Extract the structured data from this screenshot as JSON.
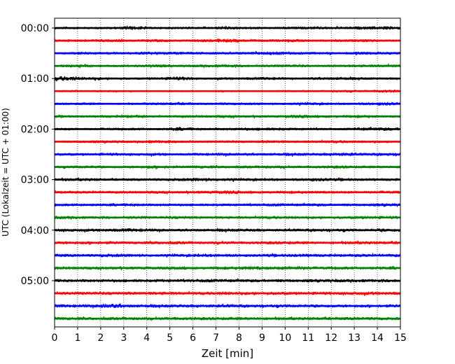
{
  "chart_data": {
    "type": "line",
    "subtype": "helicorder",
    "xlabel": "Zeit  [min]",
    "ylabel": "UTC (Lokalzeit = UTC + 01:00)",
    "xlim": [
      0,
      15
    ],
    "x_ticks": [
      0,
      1,
      2,
      3,
      4,
      5,
      6,
      7,
      8,
      9,
      10,
      11,
      12,
      13,
      14,
      15
    ],
    "x_tick_labels": [
      "0",
      "1",
      "2",
      "3",
      "4",
      "5",
      "6",
      "7",
      "8",
      "9",
      "10",
      "11",
      "12",
      "13",
      "14",
      "15"
    ],
    "y_tick_labels": [
      "00:00",
      "01:00",
      "02:00",
      "03:00",
      "04:00",
      "05:00"
    ],
    "y_tick_rows": [
      0,
      4,
      8,
      12,
      16,
      20
    ],
    "trace_minutes": 15,
    "trace_count": 24,
    "trace_colors": [
      "#000000",
      "#ff0000",
      "#0000ff",
      "#008000"
    ],
    "vertical_grid": "dotted",
    "grid_x": true,
    "series": [
      {
        "start": "00:00",
        "values": [
          0.5,
          0.4,
          0.4,
          0.8,
          0.4,
          0.5,
          0.4,
          0.6,
          0.5,
          0.4,
          0.5,
          0.6,
          0.5,
          0.6,
          0.7,
          0.4
        ]
      },
      {
        "start": "00:15",
        "values": [
          0.5,
          0.5,
          0.6,
          0.4,
          0.6,
          0.4,
          0.6,
          0.8,
          0.5,
          0.5,
          0.6,
          0.4,
          0.5,
          0.6,
          0.4,
          0.4
        ]
      },
      {
        "start": "00:30",
        "values": [
          0.4,
          0.6,
          0.4,
          0.5,
          0.6,
          0.6,
          0.5,
          0.5,
          0.5,
          0.7,
          0.5,
          0.5,
          0.4,
          0.6,
          0.5,
          0.5
        ]
      },
      {
        "start": "00:45",
        "values": [
          0.5,
          0.6,
          0.4,
          0.5,
          0.6,
          0.4,
          0.5,
          0.6,
          0.5,
          0.5,
          0.6,
          0.4,
          0.5,
          0.5,
          0.6,
          0.5
        ]
      },
      {
        "start": "01:00",
        "values": [
          1.0,
          0.7,
          0.5,
          0.4,
          0.5,
          0.8,
          0.4,
          0.5,
          0.5,
          0.6,
          0.4,
          0.5,
          0.6,
          0.5,
          0.4,
          0.5
        ]
      },
      {
        "start": "01:15",
        "values": [
          0.4,
          0.3,
          0.4,
          0.3,
          0.3,
          0.4,
          0.3,
          0.4,
          0.3,
          0.3,
          0.4,
          0.3,
          0.5,
          0.4,
          0.6,
          0.3
        ]
      },
      {
        "start": "01:30",
        "values": [
          0.4,
          0.5,
          0.4,
          0.4,
          0.5,
          0.6,
          0.4,
          0.5,
          0.5,
          0.4,
          0.5,
          0.5,
          0.4,
          0.5,
          0.7,
          0.5
        ]
      },
      {
        "start": "01:45",
        "values": [
          0.5,
          0.4,
          0.5,
          0.6,
          0.4,
          0.5,
          0.5,
          0.6,
          0.5,
          0.4,
          0.7,
          0.5,
          0.5,
          0.6,
          0.4,
          0.5
        ]
      },
      {
        "start": "02:00",
        "values": [
          0.5,
          0.4,
          0.5,
          0.5,
          0.4,
          0.7,
          0.5,
          0.5,
          0.6,
          0.6,
          0.5,
          0.5,
          0.4,
          0.6,
          0.7,
          0.5
        ]
      },
      {
        "start": "02:15",
        "values": [
          0.4,
          0.5,
          0.5,
          0.4,
          0.6,
          0.5,
          0.4,
          0.5,
          0.4,
          0.6,
          0.4,
          0.5,
          0.6,
          0.5,
          0.4,
          0.5
        ]
      },
      {
        "start": "02:30",
        "values": [
          0.5,
          0.5,
          0.6,
          0.5,
          0.6,
          0.4,
          0.5,
          0.6,
          0.5,
          0.5,
          0.6,
          0.5,
          0.7,
          0.5,
          0.6,
          0.6
        ]
      },
      {
        "start": "02:45",
        "values": [
          0.5,
          0.6,
          0.5,
          0.5,
          0.7,
          0.5,
          0.6,
          0.5,
          0.5,
          0.6,
          0.5,
          0.5,
          0.6,
          0.5,
          0.5,
          0.6
        ]
      },
      {
        "start": "03:00",
        "values": [
          0.6,
          0.6,
          0.5,
          0.5,
          0.5,
          0.6,
          0.7,
          0.6,
          0.5,
          0.5,
          0.5,
          0.7,
          0.6,
          0.5,
          0.5,
          0.6
        ]
      },
      {
        "start": "03:15",
        "values": [
          0.5,
          0.5,
          0.5,
          0.5,
          0.6,
          0.5,
          0.5,
          0.8,
          0.5,
          0.5,
          0.6,
          0.5,
          0.5,
          0.5,
          0.6,
          0.5
        ]
      },
      {
        "start": "03:30",
        "values": [
          0.5,
          0.5,
          0.5,
          0.6,
          0.5,
          0.5,
          0.5,
          0.5,
          0.5,
          0.6,
          0.5,
          0.6,
          0.5,
          0.5,
          0.6,
          0.5
        ]
      },
      {
        "start": "03:45",
        "values": [
          0.6,
          0.5,
          0.5,
          0.6,
          0.5,
          0.6,
          0.5,
          0.5,
          0.5,
          0.6,
          0.6,
          0.5,
          0.5,
          0.6,
          0.6,
          0.5
        ]
      },
      {
        "start": "04:00",
        "values": [
          0.6,
          0.6,
          0.6,
          0.7,
          0.6,
          0.5,
          0.5,
          0.6,
          0.6,
          0.5,
          0.5,
          0.6,
          0.6,
          0.5,
          0.7,
          0.6
        ]
      },
      {
        "start": "04:15",
        "values": [
          0.6,
          0.6,
          0.6,
          0.5,
          0.6,
          0.6,
          0.5,
          0.6,
          0.5,
          0.6,
          0.6,
          0.5,
          0.6,
          0.6,
          0.6,
          0.6
        ]
      },
      {
        "start": "04:30",
        "values": [
          0.6,
          0.5,
          0.7,
          0.6,
          0.5,
          0.5,
          0.6,
          0.6,
          0.5,
          0.6,
          0.6,
          0.6,
          0.5,
          0.6,
          0.6,
          0.6
        ]
      },
      {
        "start": "04:45",
        "values": [
          0.6,
          0.6,
          0.6,
          0.5,
          0.6,
          0.6,
          0.5,
          0.6,
          0.7,
          0.6,
          0.8,
          0.6,
          0.6,
          0.5,
          0.6,
          0.6
        ]
      },
      {
        "start": "05:00",
        "values": [
          0.6,
          0.6,
          0.6,
          0.6,
          0.6,
          0.6,
          0.7,
          0.6,
          0.6,
          0.6,
          0.6,
          0.6,
          0.6,
          0.6,
          0.6,
          0.6
        ]
      },
      {
        "start": "05:15",
        "values": [
          0.6,
          0.6,
          0.6,
          0.6,
          0.6,
          0.6,
          0.6,
          0.7,
          0.6,
          0.6,
          0.6,
          0.6,
          0.6,
          0.7,
          0.6,
          0.6
        ]
      },
      {
        "start": "05:30",
        "values": [
          0.6,
          0.6,
          0.9,
          0.6,
          0.6,
          0.6,
          0.6,
          0.6,
          0.6,
          0.6,
          0.6,
          0.6,
          0.6,
          0.6,
          0.6,
          0.7
        ]
      },
      {
        "start": "05:45",
        "values": [
          0.6,
          0.6,
          0.6,
          0.6,
          0.6,
          0.6,
          0.6,
          0.6,
          0.6,
          0.6,
          0.6,
          0.6,
          0.6,
          0.6,
          0.6,
          0.6
        ]
      }
    ]
  }
}
